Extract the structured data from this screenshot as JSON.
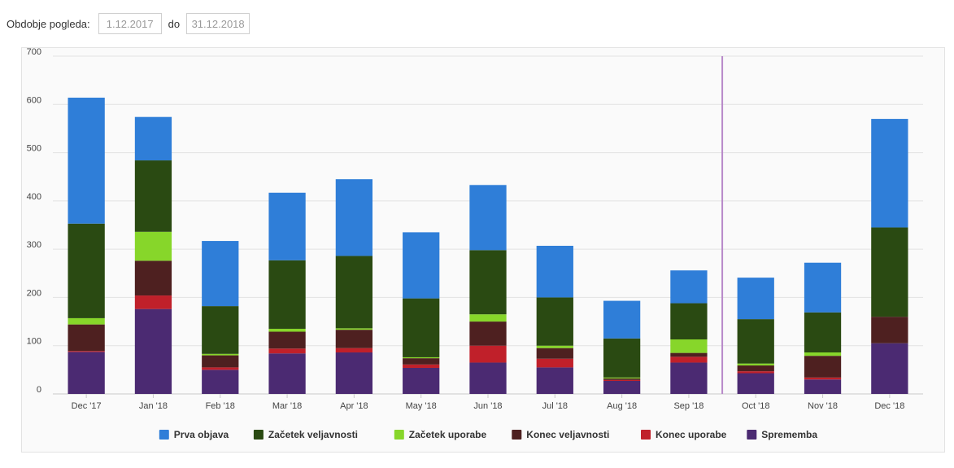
{
  "filter": {
    "label": "Obdobje pogleda:",
    "from_value": "1.12.2017",
    "to_label": "do",
    "to_value": "31.12.2018"
  },
  "chart_data": {
    "type": "bar",
    "stacked": true,
    "categories": [
      "Dec '17",
      "Jan '18",
      "Feb '18",
      "Mar '18",
      "Apr '18",
      "May '18",
      "Jun '18",
      "Jul '18",
      "Aug '18",
      "Sep '18",
      "Oct '18",
      "Nov '18",
      "Dec '18"
    ],
    "series": [
      {
        "name": "Sprememba",
        "color": "#4b2a72",
        "values": [
          87,
          176,
          50,
          84,
          86,
          54,
          65,
          55,
          27,
          65,
          43,
          30,
          105
        ]
      },
      {
        "name": "Konec uporabe",
        "color": "#c0202a",
        "values": [
          2,
          28,
          5,
          10,
          9,
          7,
          35,
          18,
          2,
          12,
          4,
          4,
          0
        ]
      },
      {
        "name": "Konec veljavnosti",
        "color": "#4e2020",
        "values": [
          55,
          72,
          25,
          35,
          38,
          13,
          50,
          22,
          3,
          8,
          12,
          45,
          55
        ]
      },
      {
        "name": "Začetek uporabe",
        "color": "#87d62a",
        "values": [
          13,
          60,
          3,
          6,
          3,
          2,
          15,
          5,
          2,
          28,
          4,
          7,
          0
        ]
      },
      {
        "name": "Začetek veljavnosti",
        "color": "#2a4a12",
        "values": [
          196,
          148,
          99,
          142,
          150,
          122,
          133,
          100,
          81,
          75,
          92,
          83,
          185
        ]
      },
      {
        "name": "Prva objava",
        "color": "#2f7ed8",
        "values": [
          261,
          90,
          135,
          140,
          159,
          137,
          135,
          107,
          78,
          68,
          86,
          103,
          225
        ]
      }
    ],
    "legend_order": [
      "Prva objava",
      "Začetek veljavnosti",
      "Začetek uporabe",
      "Konec veljavnosti",
      "Konec uporabe",
      "Sprememba"
    ],
    "ylim": [
      0,
      700
    ],
    "yticks": [
      0,
      100,
      200,
      300,
      400,
      500,
      600,
      700
    ],
    "grid": true,
    "legend_position": "bottom-center",
    "plot_line": {
      "between_categories": [
        "Sep '18",
        "Oct '18"
      ],
      "color": "#b889c9"
    }
  }
}
